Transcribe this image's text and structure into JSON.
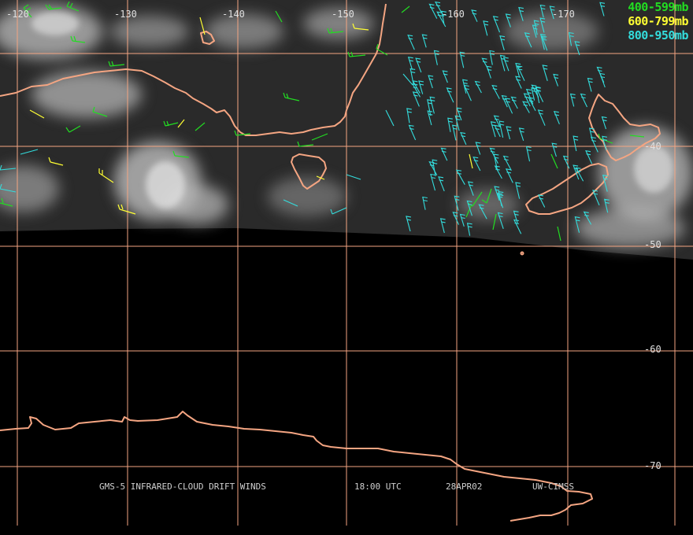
{
  "map": {
    "longitude_labels": [
      "-120",
      "-130",
      "-140",
      "-150",
      "-160",
      "-170"
    ],
    "latitude_labels": [
      "-40",
      "-50",
      "-60",
      "-70"
    ],
    "colors": {
      "grid": "#f4a582",
      "coast": "#f4a582",
      "background": "#000000"
    }
  },
  "legend": [
    {
      "label": "400-599mb",
      "color": "#22dd22"
    },
    {
      "label": "600-799mb",
      "color": "#ffff33"
    },
    {
      "label": "800-950mb",
      "color": "#33dddd"
    }
  ],
  "footer": {
    "product": "GMS-5 INFRARED-CLOUD DRIFT WINDS",
    "time": "18:00 UTC",
    "date": "28APR02",
    "source": "UW-CIMSS"
  }
}
